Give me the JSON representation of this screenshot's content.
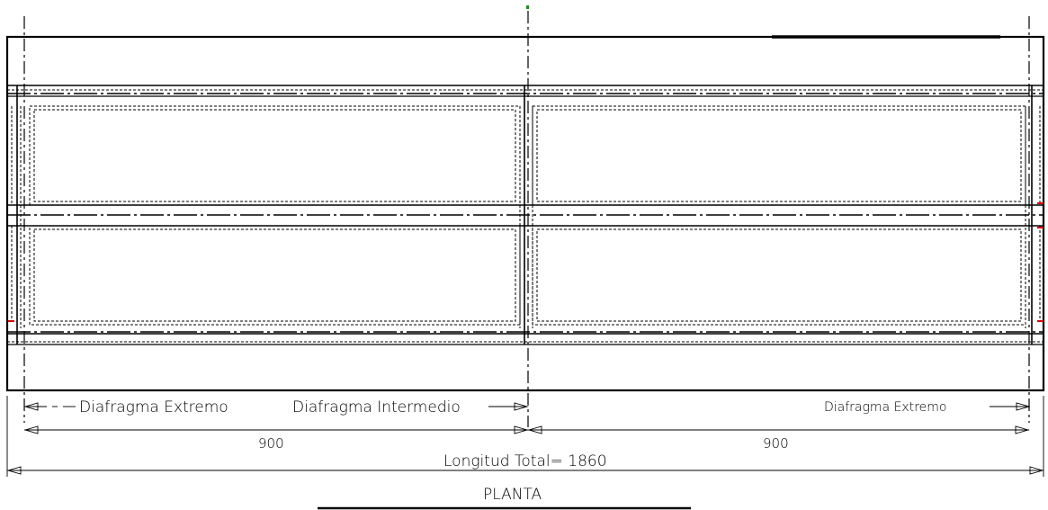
{
  "labels": {
    "diafragma_extremo_left": "Diafragma Extremo",
    "diafragma_intermedio": "Diafragma Intermedio",
    "diafragma_extremo_right": "Diafragma Extremo",
    "span_left": "900",
    "span_right": "900",
    "longitud_total": "Longitud Total= 1860",
    "titulo": "PLANTA"
  },
  "colors": {
    "line": "#000000",
    "marker_red": "#d40000",
    "marker_green": "#2a8a2a"
  }
}
